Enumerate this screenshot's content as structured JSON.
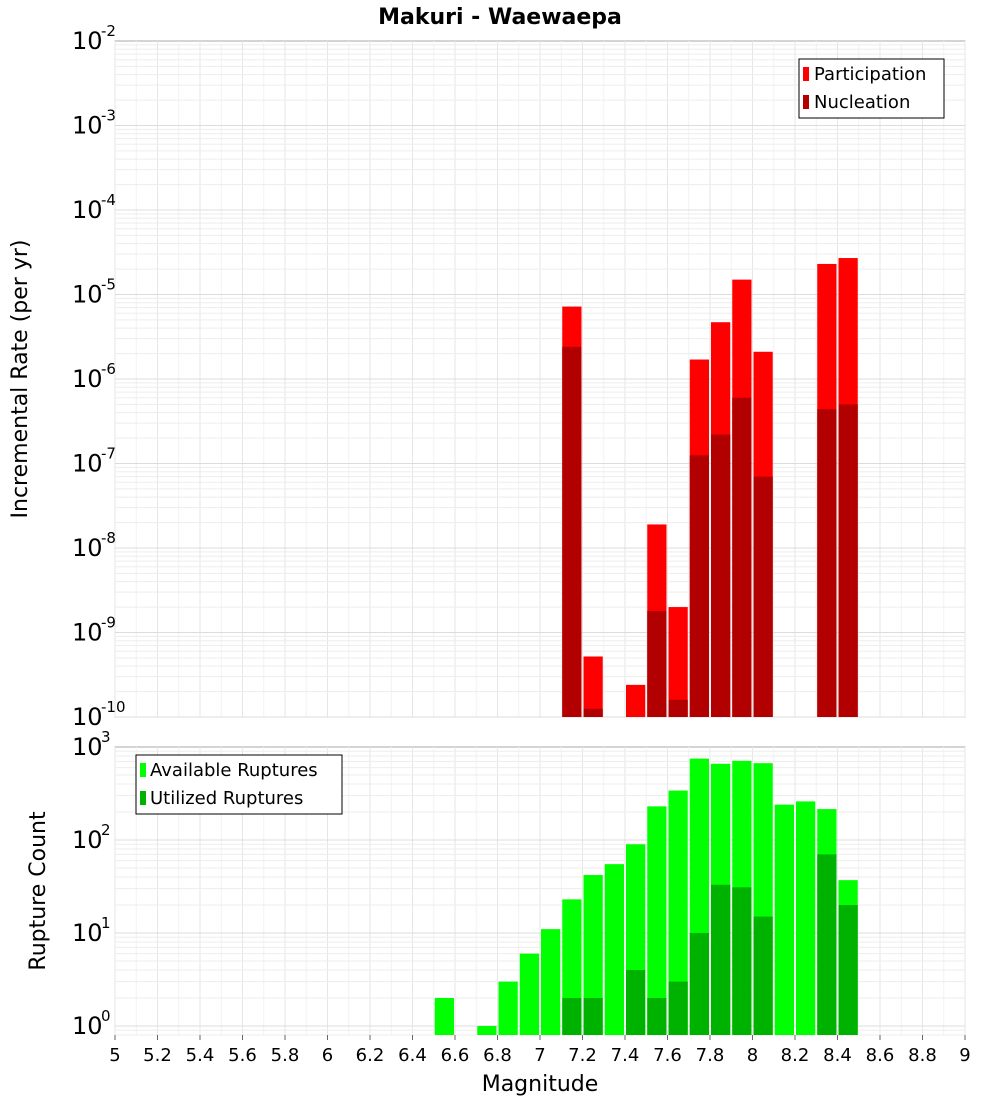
{
  "title": "Makuri - Waewaepa",
  "chart_data": [
    {
      "type": "bar",
      "panel": "top",
      "ylabel": "Incremental Rate (per yr)",
      "xlabel": "",
      "y_scale": "log",
      "ylim": [
        1e-10,
        0.01
      ],
      "xlim": [
        5,
        9
      ],
      "y_ticks": [
        {
          "base": "10",
          "exp": "-10",
          "value": 1e-10
        },
        {
          "base": "10",
          "exp": "-9",
          "value": 1e-09
        },
        {
          "base": "10",
          "exp": "-8",
          "value": 1e-08
        },
        {
          "base": "10",
          "exp": "-7",
          "value": 1e-07
        },
        {
          "base": "10",
          "exp": "-6",
          "value": 1e-06
        },
        {
          "base": "10",
          "exp": "-5",
          "value": 1e-05
        },
        {
          "base": "10",
          "exp": "-4",
          "value": 0.0001
        },
        {
          "base": "10",
          "exp": "-3",
          "value": 0.001
        },
        {
          "base": "10",
          "exp": "-2",
          "value": 0.01
        }
      ],
      "legend_position": "top-right",
      "series": [
        {
          "name": "Participation",
          "color": "#ff0000",
          "points": [
            {
              "x": 7.15,
              "y": 7.2e-06
            },
            {
              "x": 7.25,
              "y": 5.2e-10
            },
            {
              "x": 7.45,
              "y": 2.4e-10
            },
            {
              "x": 7.55,
              "y": 1.9e-08
            },
            {
              "x": 7.65,
              "y": 2e-09
            },
            {
              "x": 7.75,
              "y": 1.7e-06
            },
            {
              "x": 7.85,
              "y": 4.7e-06
            },
            {
              "x": 7.95,
              "y": 1.5e-05
            },
            {
              "x": 8.05,
              "y": 2.1e-06
            },
            {
              "x": 8.35,
              "y": 2.3e-05
            },
            {
              "x": 8.45,
              "y": 2.7e-05
            }
          ]
        },
        {
          "name": "Nucleation",
          "color": "#b20000",
          "points": [
            {
              "x": 7.15,
              "y": 2.4e-06
            },
            {
              "x": 7.25,
              "y": 1.25e-10
            },
            {
              "x": 7.55,
              "y": 1.8e-09
            },
            {
              "x": 7.65,
              "y": 1.6e-10
            },
            {
              "x": 7.75,
              "y": 1.25e-07
            },
            {
              "x": 7.85,
              "y": 2.2e-07
            },
            {
              "x": 7.95,
              "y": 6e-07
            },
            {
              "x": 8.05,
              "y": 7e-08
            },
            {
              "x": 8.35,
              "y": 4.4e-07
            },
            {
              "x": 8.45,
              "y": 5e-07
            }
          ]
        }
      ]
    },
    {
      "type": "bar",
      "panel": "bottom",
      "ylabel": "Rupture Count",
      "xlabel": "Magnitude",
      "y_scale": "log",
      "ylim": [
        0.8,
        1000
      ],
      "xlim": [
        5,
        9
      ],
      "x_ticks": [
        "5",
        "5.2",
        "5.4",
        "5.6",
        "5.8",
        "6",
        "6.2",
        "6.4",
        "6.6",
        "6.8",
        "7",
        "7.2",
        "7.4",
        "7.6",
        "7.8",
        "8",
        "8.2",
        "8.4",
        "8.6",
        "8.8",
        "9"
      ],
      "y_ticks": [
        {
          "base": "10",
          "exp": "0",
          "value": 1
        },
        {
          "base": "10",
          "exp": "1",
          "value": 10
        },
        {
          "base": "10",
          "exp": "2",
          "value": 100
        },
        {
          "base": "10",
          "exp": "3",
          "value": 1000
        }
      ],
      "legend_position": "top-left",
      "series": [
        {
          "name": "Available Ruptures",
          "color": "#00ff00",
          "points": [
            {
              "x": 6.55,
              "y": 2
            },
            {
              "x": 6.75,
              "y": 1
            },
            {
              "x": 6.85,
              "y": 3
            },
            {
              "x": 6.95,
              "y": 6
            },
            {
              "x": 7.05,
              "y": 11
            },
            {
              "x": 7.15,
              "y": 23
            },
            {
              "x": 7.25,
              "y": 42
            },
            {
              "x": 7.35,
              "y": 55
            },
            {
              "x": 7.45,
              "y": 90
            },
            {
              "x": 7.55,
              "y": 230
            },
            {
              "x": 7.65,
              "y": 340
            },
            {
              "x": 7.75,
              "y": 750
            },
            {
              "x": 7.85,
              "y": 660
            },
            {
              "x": 7.95,
              "y": 710
            },
            {
              "x": 8.05,
              "y": 670
            },
            {
              "x": 8.15,
              "y": 240
            },
            {
              "x": 8.25,
              "y": 260
            },
            {
              "x": 8.35,
              "y": 215
            },
            {
              "x": 8.45,
              "y": 37
            }
          ]
        },
        {
          "name": "Utilized Ruptures",
          "color": "#00b200",
          "points": [
            {
              "x": 7.15,
              "y": 2
            },
            {
              "x": 7.25,
              "y": 2
            },
            {
              "x": 7.45,
              "y": 4
            },
            {
              "x": 7.55,
              "y": 2
            },
            {
              "x": 7.65,
              "y": 3
            },
            {
              "x": 7.75,
              "y": 10
            },
            {
              "x": 7.85,
              "y": 33
            },
            {
              "x": 7.95,
              "y": 31
            },
            {
              "x": 8.05,
              "y": 15
            },
            {
              "x": 8.35,
              "y": 70
            },
            {
              "x": 8.45,
              "y": 20
            }
          ]
        }
      ]
    }
  ]
}
